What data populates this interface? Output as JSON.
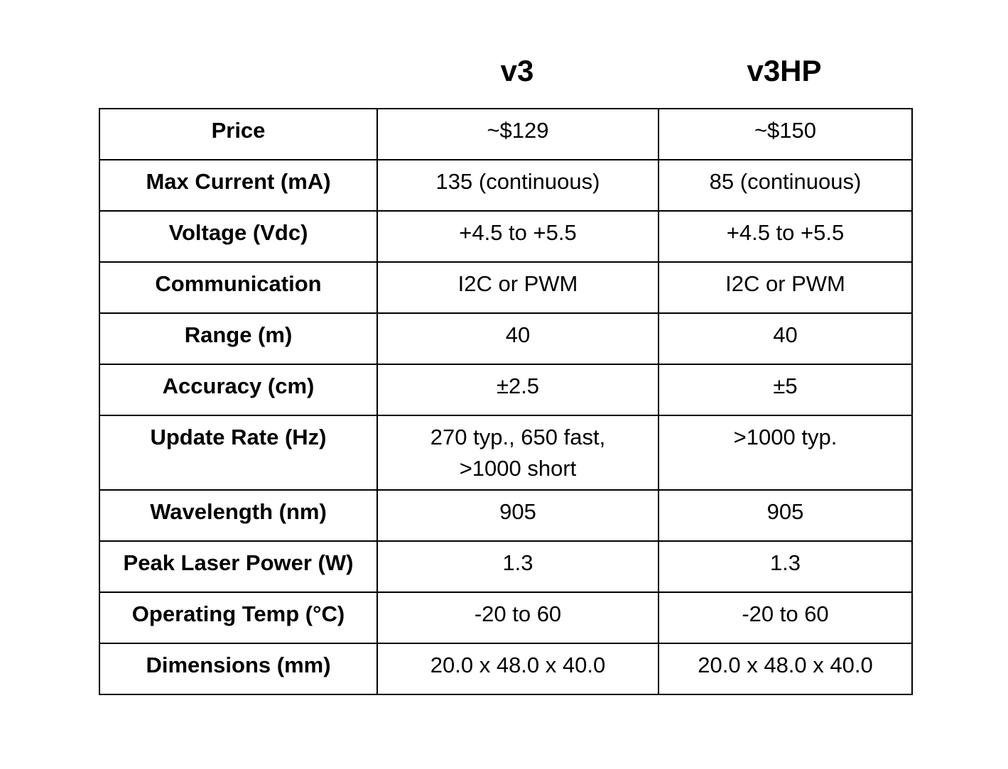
{
  "columns": [
    "v3",
    "v3HP"
  ],
  "rows": [
    {
      "label": "Price",
      "v3": "~$129",
      "v3hp": "~$150"
    },
    {
      "label": "Max Current (mA)",
      "v3": "135 (continuous)",
      "v3hp": "85 (continuous)"
    },
    {
      "label": "Voltage (Vdc)",
      "v3": "+4.5 to +5.5",
      "v3hp": "+4.5 to +5.5"
    },
    {
      "label": "Communication",
      "v3": "I2C or PWM",
      "v3hp": "I2C or PWM"
    },
    {
      "label": "Range (m)",
      "v3": "40",
      "v3hp": "40"
    },
    {
      "label": "Accuracy (cm)",
      "v3": "±2.5",
      "v3hp": "±5"
    },
    {
      "label": "Update Rate (Hz)",
      "v3": "270 typ., 650 fast,\n>1000 short",
      "v3hp": ">1000 typ."
    },
    {
      "label": "Wavelength (nm)",
      "v3": "905",
      "v3hp": "905"
    },
    {
      "label": "Peak Laser Power (W)",
      "v3": "1.3",
      "v3hp": "1.3"
    },
    {
      "label": "Operating Temp (°C)",
      "v3": "-20 to 60",
      "v3hp": "-20 to 60"
    },
    {
      "label": "Dimensions (mm)",
      "v3": "20.0 x 48.0 x 40.0",
      "v3hp": "20.0 x 48.0 x 40.0"
    }
  ]
}
